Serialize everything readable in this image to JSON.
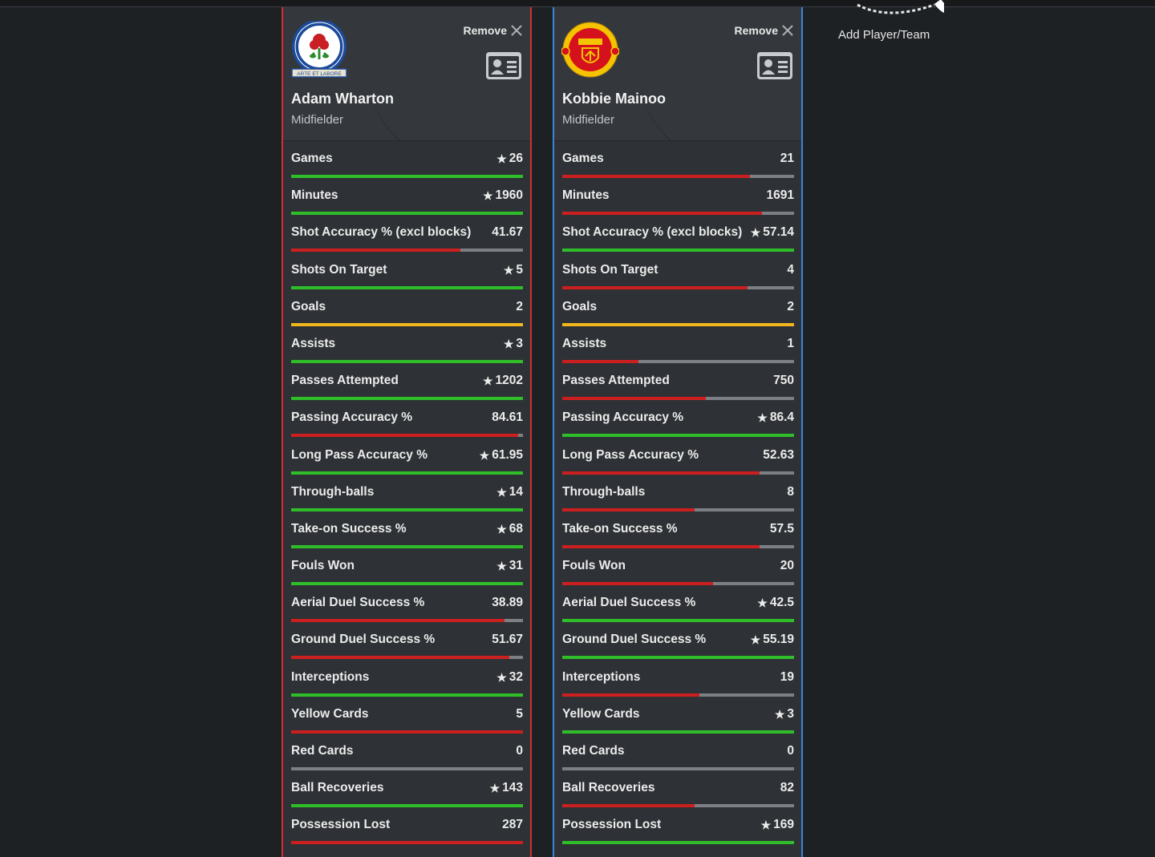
{
  "add_button": {
    "label": "Add Player/Team"
  },
  "colors": {
    "good": "#2fbe2a",
    "bad": "#cc1f1f",
    "tie": "#f1b51e",
    "track": "#7c7f83"
  },
  "players": [
    {
      "name": "Adam Wharton",
      "position": "Midfielder",
      "remove_label": "Remove",
      "crest_icon": "blackburn-rovers-crest-icon",
      "crest_text": "ARTE ET LABORE",
      "stats": [
        {
          "label": "Games",
          "value": "26",
          "star": true,
          "fill": 1.0,
          "color": "good"
        },
        {
          "label": "Minutes",
          "value": "1960",
          "star": true,
          "fill": 1.0,
          "color": "good"
        },
        {
          "label": "Shot Accuracy % (excl blocks)",
          "value": "41.67",
          "star": false,
          "fill": 0.73,
          "color": "bad"
        },
        {
          "label": "Shots On Target",
          "value": "5",
          "star": true,
          "fill": 1.0,
          "color": "good"
        },
        {
          "label": "Goals",
          "value": "2",
          "star": false,
          "fill": 1.0,
          "color": "tie"
        },
        {
          "label": "Assists",
          "value": "3",
          "star": true,
          "fill": 1.0,
          "color": "good"
        },
        {
          "label": "Passes Attempted",
          "value": "1202",
          "star": true,
          "fill": 1.0,
          "color": "good"
        },
        {
          "label": "Passing Accuracy %",
          "value": "84.61",
          "star": false,
          "fill": 0.98,
          "color": "bad"
        },
        {
          "label": "Long Pass Accuracy %",
          "value": "61.95",
          "star": true,
          "fill": 1.0,
          "color": "good"
        },
        {
          "label": "Through-balls",
          "value": "14",
          "star": true,
          "fill": 1.0,
          "color": "good"
        },
        {
          "label": "Take-on Success %",
          "value": "68",
          "star": true,
          "fill": 1.0,
          "color": "good"
        },
        {
          "label": "Fouls Won",
          "value": "31",
          "star": true,
          "fill": 1.0,
          "color": "good"
        },
        {
          "label": "Aerial Duel Success %",
          "value": "38.89",
          "star": false,
          "fill": 0.92,
          "color": "bad"
        },
        {
          "label": "Ground Duel Success %",
          "value": "51.67",
          "star": false,
          "fill": 0.94,
          "color": "bad"
        },
        {
          "label": "Interceptions",
          "value": "32",
          "star": true,
          "fill": 1.0,
          "color": "good"
        },
        {
          "label": "Yellow Cards",
          "value": "5",
          "star": false,
          "fill": 1.0,
          "color": "bad"
        },
        {
          "label": "Red Cards",
          "value": "0",
          "star": false,
          "fill": 0.0,
          "color": "bad"
        },
        {
          "label": "Ball Recoveries",
          "value": "143",
          "star": true,
          "fill": 1.0,
          "color": "good"
        },
        {
          "label": "Possession Lost",
          "value": "287",
          "star": false,
          "fill": 1.0,
          "color": "bad"
        }
      ]
    },
    {
      "name": "Kobbie Mainoo",
      "position": "Midfielder",
      "remove_label": "Remove",
      "crest_icon": "manchester-united-crest-icon",
      "crest_text": "",
      "stats": [
        {
          "label": "Games",
          "value": "21",
          "star": false,
          "fill": 0.81,
          "color": "bad"
        },
        {
          "label": "Minutes",
          "value": "1691",
          "star": false,
          "fill": 0.86,
          "color": "bad"
        },
        {
          "label": "Shot Accuracy % (excl blocks)",
          "value": "57.14",
          "star": true,
          "fill": 1.0,
          "color": "good"
        },
        {
          "label": "Shots On Target",
          "value": "4",
          "star": false,
          "fill": 0.8,
          "color": "bad"
        },
        {
          "label": "Goals",
          "value": "2",
          "star": false,
          "fill": 1.0,
          "color": "tie"
        },
        {
          "label": "Assists",
          "value": "1",
          "star": false,
          "fill": 0.33,
          "color": "bad"
        },
        {
          "label": "Passes Attempted",
          "value": "750",
          "star": false,
          "fill": 0.62,
          "color": "bad"
        },
        {
          "label": "Passing Accuracy %",
          "value": "86.4",
          "star": true,
          "fill": 1.0,
          "color": "good"
        },
        {
          "label": "Long Pass Accuracy %",
          "value": "52.63",
          "star": false,
          "fill": 0.85,
          "color": "bad"
        },
        {
          "label": "Through-balls",
          "value": "8",
          "star": false,
          "fill": 0.57,
          "color": "bad"
        },
        {
          "label": "Take-on Success %",
          "value": "57.5",
          "star": false,
          "fill": 0.85,
          "color": "bad"
        },
        {
          "label": "Fouls Won",
          "value": "20",
          "star": false,
          "fill": 0.65,
          "color": "bad"
        },
        {
          "label": "Aerial Duel Success %",
          "value": "42.5",
          "star": true,
          "fill": 1.0,
          "color": "good"
        },
        {
          "label": "Ground Duel Success %",
          "value": "55.19",
          "star": true,
          "fill": 1.0,
          "color": "good"
        },
        {
          "label": "Interceptions",
          "value": "19",
          "star": false,
          "fill": 0.59,
          "color": "bad"
        },
        {
          "label": "Yellow Cards",
          "value": "3",
          "star": true,
          "fill": 1.0,
          "color": "good"
        },
        {
          "label": "Red Cards",
          "value": "0",
          "star": false,
          "fill": 0.0,
          "color": "bad"
        },
        {
          "label": "Ball Recoveries",
          "value": "82",
          "star": false,
          "fill": 0.57,
          "color": "bad"
        },
        {
          "label": "Possession Lost",
          "value": "169",
          "star": true,
          "fill": 1.0,
          "color": "good"
        }
      ]
    }
  ]
}
